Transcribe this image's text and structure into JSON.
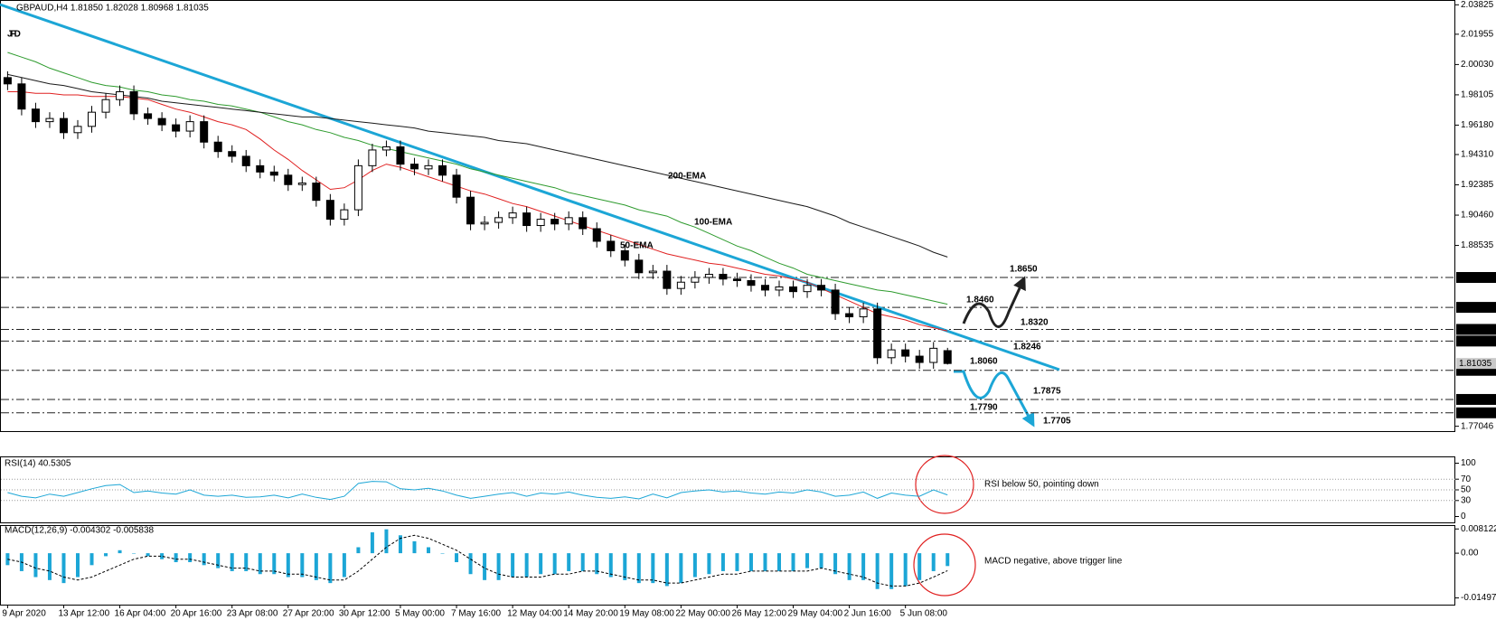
{
  "chart_data": [
    {
      "type": "candlestick",
      "title": "GBPAUD,H4  1.81850 1.82028 1.80968 1.81035",
      "logo": "JFD",
      "open": [
        1.992,
        1.988,
        1.972,
        1.964,
        1.966,
        1.957,
        1.961,
        1.97,
        1.978,
        1.983,
        1.969,
        1.966,
        1.962,
        1.958,
        1.964,
        1.951,
        1.945,
        1.942,
        1.936,
        1.932,
        1.93,
        1.924,
        1.925,
        1.914,
        1.902,
        1.908,
        1.936,
        1.946,
        1.948,
        1.937,
        1.934,
        1.936,
        1.93,
        1.916,
        1.899,
        1.9,
        1.903,
        1.906,
        1.898,
        1.902,
        1.899,
        1.903,
        1.896,
        1.888,
        1.882,
        1.876,
        1.868,
        1.869,
        1.858,
        1.862,
        1.865,
        1.867,
        1.864,
        1.863,
        1.86,
        1.857,
        1.859,
        1.856,
        1.86,
        1.857,
        1.842,
        1.84,
        1.845,
        1.814,
        1.819,
        1.815,
        1.811,
        1.8185
      ],
      "high": [
        1.996,
        1.992,
        1.976,
        1.97,
        1.97,
        1.965,
        1.974,
        1.982,
        1.987,
        1.987,
        1.973,
        1.97,
        1.966,
        1.968,
        1.968,
        1.955,
        1.949,
        1.946,
        1.94,
        1.936,
        1.934,
        1.929,
        1.929,
        1.918,
        1.912,
        1.94,
        1.95,
        1.952,
        1.952,
        1.941,
        1.94,
        1.94,
        1.934,
        1.92,
        1.904,
        1.907,
        1.91,
        1.91,
        1.906,
        1.906,
        1.907,
        1.907,
        1.9,
        1.892,
        1.886,
        1.88,
        1.873,
        1.873,
        1.866,
        1.869,
        1.871,
        1.871,
        1.868,
        1.867,
        1.864,
        1.863,
        1.863,
        1.864,
        1.864,
        1.861,
        1.846,
        1.849,
        1.849,
        1.823,
        1.823,
        1.819,
        1.824,
        1.82028
      ],
      "low": [
        1.984,
        1.968,
        1.96,
        1.96,
        1.953,
        1.953,
        1.957,
        1.966,
        1.974,
        1.965,
        1.962,
        1.958,
        1.954,
        1.954,
        1.947,
        1.941,
        1.938,
        1.932,
        1.928,
        1.926,
        1.92,
        1.92,
        1.91,
        1.898,
        1.898,
        1.904,
        1.932,
        1.942,
        1.933,
        1.93,
        1.93,
        1.926,
        1.912,
        1.895,
        1.895,
        1.896,
        1.899,
        1.894,
        1.894,
        1.895,
        1.895,
        1.892,
        1.884,
        1.878,
        1.872,
        1.864,
        1.864,
        1.854,
        1.854,
        1.858,
        1.861,
        1.86,
        1.859,
        1.856,
        1.853,
        1.853,
        1.852,
        1.852,
        1.853,
        1.838,
        1.836,
        1.836,
        1.81,
        1.81,
        1.811,
        1.807,
        1.807,
        1.80968
      ],
      "close": [
        1.988,
        1.972,
        1.964,
        1.966,
        1.957,
        1.961,
        1.97,
        1.978,
        1.983,
        1.969,
        1.966,
        1.962,
        1.958,
        1.964,
        1.951,
        1.945,
        1.942,
        1.936,
        1.932,
        1.93,
        1.924,
        1.925,
        1.914,
        1.902,
        1.908,
        1.936,
        1.946,
        1.948,
        1.937,
        1.934,
        1.936,
        1.93,
        1.916,
        1.899,
        1.9,
        1.903,
        1.906,
        1.898,
        1.902,
        1.899,
        1.903,
        1.896,
        1.888,
        1.882,
        1.876,
        1.868,
        1.869,
        1.858,
        1.862,
        1.865,
        1.867,
        1.864,
        1.863,
        1.86,
        1.857,
        1.859,
        1.856,
        1.86,
        1.857,
        1.842,
        1.84,
        1.845,
        1.814,
        1.819,
        1.815,
        1.811,
        1.82,
        1.81035
      ],
      "up_color": "#ffffff",
      "down_color": "#000000",
      "ylim": [
        1.7668,
        2.0413
      ],
      "yticks": [
        2.03825,
        2.01955,
        {
          "value": 2.0003,
          "label": "2.00030"
        },
        1.98105,
        {
          "value": 1.9618,
          "label": "1.96180"
        },
        {
          "value": 1.9431,
          "label": "1.94310"
        },
        1.92385,
        {
          "value": 1.9046,
          "label": "1.90460"
        },
        1.88535,
        1.77046
      ],
      "overlays": [
        {
          "name": "50-EMA",
          "color": "#e02020",
          "values": [
            1.983,
            1.983,
            1.982,
            1.982,
            1.981,
            1.981,
            1.98,
            1.98,
            1.98,
            1.979,
            1.978,
            1.975,
            1.972,
            1.97,
            1.967,
            1.964,
            1.962,
            1.959,
            1.953,
            1.946,
            1.94,
            1.933,
            1.927,
            1.921,
            1.922,
            1.927,
            1.933,
            1.937,
            1.935,
            1.932,
            1.929,
            1.926,
            1.923,
            1.92,
            1.918,
            1.915,
            1.912,
            1.91,
            1.907,
            1.904,
            1.901,
            1.898,
            1.895,
            1.892,
            1.889,
            1.886,
            1.883,
            1.88,
            1.878,
            1.876,
            1.874,
            1.873,
            1.871,
            1.869,
            1.867,
            1.866,
            1.864,
            1.862,
            1.858,
            1.854,
            1.85,
            1.846,
            1.842,
            1.84,
            1.838,
            1.835,
            1.833,
            1.831
          ]
        },
        {
          "name": "100-EMA",
          "color": "#2e9b2e",
          "values": [
            2.008,
            2.005,
            2.002,
            1.998,
            1.995,
            1.992,
            1.989,
            1.987,
            1.986,
            1.984,
            1.983,
            1.981,
            1.98,
            1.978,
            1.977,
            1.975,
            1.974,
            1.972,
            1.97,
            1.967,
            1.964,
            1.962,
            1.959,
            1.957,
            1.954,
            1.952,
            1.949,
            1.947,
            1.945,
            1.943,
            1.941,
            1.939,
            1.937,
            1.934,
            1.932,
            1.93,
            1.928,
            1.926,
            1.924,
            1.922,
            1.919,
            1.917,
            1.915,
            1.913,
            1.911,
            1.908,
            1.906,
            1.904,
            1.9,
            1.897,
            1.893,
            1.889,
            1.885,
            1.882,
            1.878,
            1.874,
            1.871,
            1.867,
            1.865,
            1.863,
            1.861,
            1.859,
            1.857,
            1.856,
            1.854,
            1.852,
            1.85,
            1.848
          ]
        },
        {
          "name": "200-EMA",
          "color": "#1a1a1a",
          "values": [
            1.994,
            1.992,
            1.99,
            1.988,
            1.987,
            1.985,
            1.983,
            1.982,
            1.981,
            1.98,
            1.979,
            1.977,
            1.976,
            1.975,
            1.974,
            1.973,
            1.972,
            1.971,
            1.97,
            1.969,
            1.968,
            1.967,
            1.967,
            1.966,
            1.965,
            1.964,
            1.963,
            1.962,
            1.961,
            1.96,
            1.958,
            1.957,
            1.956,
            1.955,
            1.954,
            1.952,
            1.951,
            1.95,
            1.948,
            1.946,
            1.944,
            1.942,
            1.94,
            1.938,
            1.936,
            1.934,
            1.932,
            1.93,
            1.928,
            1.926,
            1.924,
            1.922,
            1.92,
            1.918,
            1.916,
            1.914,
            1.912,
            1.91,
            1.907,
            1.904,
            1.9,
            1.897,
            1.894,
            1.891,
            1.888,
            1.885,
            1.881,
            1.878
          ]
        }
      ],
      "levels": [
        {
          "value": 1.865,
          "label": "1.86500"
        },
        {
          "value": 1.846,
          "label": "1.84600"
        },
        {
          "value": 1.832,
          "label": "1.83200"
        },
        {
          "value": 1.8246,
          "label": "1.82460"
        },
        {
          "value": 1.806,
          "label": "1.80600"
        },
        {
          "value": 1.7875,
          "label": "1.78750"
        },
        {
          "value": 1.779,
          "label": "1.77900"
        }
      ],
      "last_price": 1.81035,
      "trendline_color": "#1ca6d6",
      "annotations": [
        {
          "text": "1.8650",
          "color": "#222222"
        },
        {
          "text": "1.8460",
          "color": "#222222"
        },
        {
          "text": "1.8320",
          "color": "#222222"
        },
        {
          "text": "1.8246",
          "color": "#222222"
        },
        {
          "text": "1.8060",
          "color": "#1ca6d6"
        },
        {
          "text": "1.7875",
          "color": "#1ca6d6"
        },
        {
          "text": "1.7790",
          "color": "#1ca6d6"
        },
        {
          "text": "1.7705",
          "color": "#1ca6d6"
        }
      ]
    },
    {
      "type": "line",
      "title": "RSI(14) 40.5305",
      "color": "#1ca6d6",
      "values": [
        45,
        38,
        35,
        42,
        38,
        45,
        52,
        58,
        60,
        45,
        48,
        44,
        42,
        50,
        40,
        38,
        40,
        36,
        37,
        40,
        35,
        42,
        36,
        32,
        38,
        62,
        66,
        65,
        52,
        50,
        53,
        48,
        40,
        34,
        38,
        42,
        45,
        38,
        44,
        42,
        46,
        40,
        36,
        34,
        37,
        33,
        42,
        35,
        45,
        48,
        50,
        46,
        48,
        44,
        42,
        46,
        44,
        50,
        46,
        38,
        40,
        46,
        34,
        44,
        40,
        38,
        50,
        40.5305
      ],
      "ylim": [
        -12.7,
        112.7
      ],
      "yticks": [
        100,
        70,
        50,
        30,
        0
      ],
      "annotation": "RSI below 50, pointing down",
      "annotation_color": "#e02020"
    },
    {
      "type": "bar",
      "title": "MACD(12,26,9) -0.004302 -0.005838",
      "color": "#1ca6d6",
      "categories": [
        "9 Apr 2020",
        null,
        null,
        null,
        "13 Apr 12:00",
        null,
        null,
        null,
        "16 Apr 04:00",
        null,
        null,
        null,
        "20 Apr 16:00",
        null,
        null,
        null,
        "23 Apr 08:00",
        null,
        null,
        null,
        "27 Apr 20:00",
        null,
        null,
        null,
        "30 Apr 12:00",
        null,
        null,
        null,
        "5 May 00:00",
        null,
        null,
        null,
        "7 May 16:00",
        null,
        null,
        null,
        "12 May 04:00",
        null,
        null,
        null,
        "14 May 20:00",
        null,
        null,
        null,
        "19 May 08:00",
        null,
        null,
        null,
        "22 May 00:00",
        null,
        null,
        null,
        "26 May 12:00",
        null,
        null,
        null,
        "29 May 04:00",
        null,
        null,
        null,
        "2 Jun 16:00",
        null,
        null,
        null,
        "5 Jun 08:00",
        null,
        null,
        null
      ],
      "values": [
        -0.004,
        -0.006,
        -0.008,
        -0.009,
        -0.01,
        -0.008,
        -0.004,
        -0.001,
        0.001,
        0.0,
        -0.001,
        -0.002,
        -0.003,
        -0.003,
        -0.004,
        -0.005,
        -0.006,
        -0.006,
        -0.007,
        -0.007,
        -0.008,
        -0.008,
        -0.009,
        -0.01,
        -0.008,
        0.002,
        0.007,
        0.008,
        0.006,
        0.004,
        0.002,
        0.0,
        -0.003,
        -0.007,
        -0.009,
        -0.009,
        -0.008,
        -0.008,
        -0.007,
        -0.007,
        -0.006,
        -0.006,
        -0.007,
        -0.008,
        -0.009,
        -0.01,
        -0.01,
        -0.011,
        -0.01,
        -0.008,
        -0.007,
        -0.006,
        -0.006,
        -0.006,
        -0.006,
        -0.006,
        -0.006,
        -0.005,
        -0.005,
        -0.007,
        -0.009,
        -0.009,
        -0.012,
        -0.012,
        -0.011,
        -0.009,
        -0.006,
        -0.004302
      ],
      "signal": [
        -0.002,
        -0.003,
        -0.005,
        -0.006,
        -0.008,
        -0.009,
        -0.008,
        -0.006,
        -0.004,
        -0.002,
        -0.001,
        -0.001,
        -0.002,
        -0.002,
        -0.003,
        -0.004,
        -0.005,
        -0.005,
        -0.006,
        -0.006,
        -0.007,
        -0.007,
        -0.008,
        -0.009,
        -0.009,
        -0.006,
        -0.002,
        0.002,
        0.005,
        0.006,
        0.005,
        0.003,
        0.001,
        -0.002,
        -0.005,
        -0.007,
        -0.008,
        -0.008,
        -0.008,
        -0.007,
        -0.007,
        -0.006,
        -0.006,
        -0.007,
        -0.008,
        -0.009,
        -0.009,
        -0.01,
        -0.01,
        -0.009,
        -0.008,
        -0.007,
        -0.007,
        -0.006,
        -0.006,
        -0.006,
        -0.006,
        -0.006,
        -0.005,
        -0.006,
        -0.007,
        -0.008,
        -0.01,
        -0.011,
        -0.011,
        -0.01,
        -0.008,
        -0.005838
      ],
      "signal_color": "#000000",
      "ylim": [
        -0.01722,
        0.00941
      ],
      "yticks": [
        0.008122,
        {
          "value": 0,
          "label": "0.00"
        },
        -0.014976
      ],
      "annotation": "MACD negative, above trigger line",
      "annotation_color": "#e02020"
    }
  ]
}
